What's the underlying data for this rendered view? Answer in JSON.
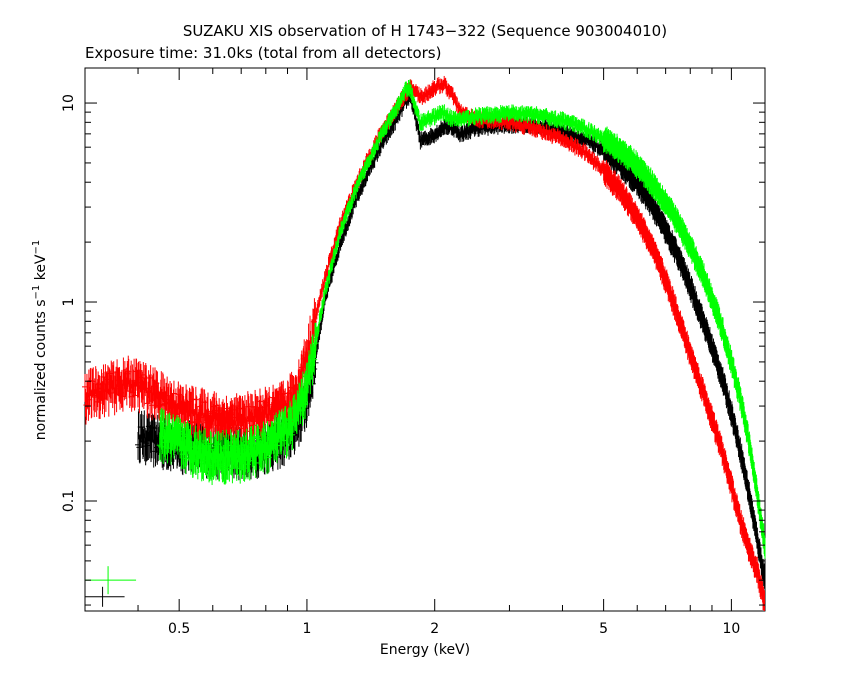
{
  "chart_data": {
    "type": "scatter",
    "title": "SUZAKU XIS observation of H 1743−322 (Sequence 903004010)",
    "subtitle": "Exposure time: 31.0ks (total from all detectors)",
    "xlabel": "Energy (keV)",
    "ylabel": {
      "prefix": "normalized counts s",
      "sup1": "−1",
      "middle": " keV",
      "sup2": "−1"
    },
    "x_scale": "log",
    "y_scale": "log",
    "xlim": [
      0.3,
      12
    ],
    "ylim": [
      0.028,
      15
    ],
    "x_ticks": [
      {
        "value": 0.5,
        "label": "0.5"
      },
      {
        "value": 1,
        "label": "1"
      },
      {
        "value": 2,
        "label": "2"
      },
      {
        "value": 5,
        "label": "5"
      },
      {
        "value": 10,
        "label": "10"
      }
    ],
    "y_ticks": [
      {
        "value": 0.1,
        "label": "0.1"
      },
      {
        "value": 1,
        "label": "1"
      },
      {
        "value": 10,
        "label": "10"
      }
    ],
    "grid": false,
    "series": [
      {
        "color": "#000000",
        "x": [
          0.4,
          0.42,
          0.45,
          0.5,
          0.55,
          0.6,
          0.65,
          0.7,
          0.75,
          0.8,
          0.85,
          0.9,
          0.95,
          1.0,
          1.05,
          1.1,
          1.2,
          1.3,
          1.4,
          1.5,
          1.6,
          1.7,
          1.75,
          1.8,
          1.85,
          1.9,
          2.0,
          2.1,
          2.2,
          2.3,
          2.5,
          2.8,
          3.0,
          3.5,
          4.0,
          4.5,
          5.0,
          5.5,
          6.0,
          6.5,
          7.0,
          7.5,
          8.0,
          8.5,
          9.0,
          9.5,
          10.0,
          10.5,
          11.0,
          11.5,
          12.0
        ],
        "y": [
          0.22,
          0.21,
          0.2,
          0.19,
          0.19,
          0.18,
          0.18,
          0.18,
          0.18,
          0.19,
          0.2,
          0.21,
          0.25,
          0.32,
          0.55,
          1.0,
          2.0,
          3.2,
          4.6,
          6.2,
          7.8,
          10.0,
          11.0,
          8.5,
          6.5,
          6.6,
          7.0,
          7.6,
          7.6,
          7.0,
          7.5,
          7.7,
          7.8,
          7.7,
          7.2,
          6.6,
          5.8,
          4.9,
          4.0,
          3.1,
          2.3,
          1.7,
          1.2,
          0.85,
          0.6,
          0.42,
          0.28,
          0.18,
          0.11,
          0.065,
          0.04
        ]
      },
      {
        "color": "#ff0000",
        "x": [
          0.3,
          0.32,
          0.35,
          0.38,
          0.4,
          0.42,
          0.45,
          0.5,
          0.55,
          0.6,
          0.65,
          0.7,
          0.75,
          0.8,
          0.85,
          0.9,
          0.95,
          1.0,
          1.05,
          1.1,
          1.2,
          1.3,
          1.4,
          1.5,
          1.6,
          1.7,
          1.75,
          1.8,
          1.85,
          1.9,
          2.0,
          2.1,
          2.2,
          2.3,
          2.5,
          2.8,
          3.0,
          3.5,
          4.0,
          4.5,
          5.0,
          5.5,
          6.0,
          6.5,
          7.0,
          7.5,
          8.0,
          8.5,
          9.0,
          9.5,
          10.0,
          10.5,
          11.0,
          11.5,
          12.0
        ],
        "y": [
          0.34,
          0.36,
          0.38,
          0.4,
          0.39,
          0.37,
          0.34,
          0.3,
          0.28,
          0.27,
          0.26,
          0.26,
          0.27,
          0.28,
          0.29,
          0.31,
          0.38,
          0.55,
          0.85,
          1.3,
          2.5,
          3.8,
          5.4,
          7.2,
          9.0,
          11.0,
          12.0,
          11.5,
          10.8,
          11.0,
          12.0,
          12.5,
          11.0,
          9.0,
          8.3,
          8.2,
          8.0,
          7.4,
          6.6,
          5.7,
          4.6,
          3.6,
          2.7,
          1.9,
          1.3,
          0.85,
          0.55,
          0.38,
          0.26,
          0.18,
          0.12,
          0.08,
          0.058,
          0.045,
          0.03
        ]
      },
      {
        "color": "#00ff00",
        "x": [
          0.45,
          0.5,
          0.55,
          0.6,
          0.65,
          0.7,
          0.75,
          0.8,
          0.85,
          0.9,
          0.95,
          1.0,
          1.05,
          1.1,
          1.2,
          1.3,
          1.4,
          1.5,
          1.6,
          1.7,
          1.75,
          1.8,
          1.85,
          1.9,
          2.0,
          2.1,
          2.2,
          2.3,
          2.5,
          2.8,
          3.0,
          3.5,
          4.0,
          4.5,
          5.0,
          5.5,
          6.0,
          6.5,
          7.0,
          7.5,
          8.0,
          8.5,
          9.0,
          9.5,
          10.0,
          10.5,
          11.0,
          11.5,
          12.0
        ],
        "y": [
          0.22,
          0.2,
          0.18,
          0.17,
          0.17,
          0.17,
          0.18,
          0.19,
          0.21,
          0.23,
          0.28,
          0.38,
          0.65,
          1.1,
          2.3,
          3.6,
          5.2,
          7.0,
          8.8,
          11.5,
          12.0,
          9.5,
          8.0,
          8.2,
          8.6,
          9.0,
          8.3,
          8.3,
          8.6,
          8.8,
          8.9,
          8.7,
          8.2,
          7.5,
          6.7,
          5.8,
          4.9,
          4.0,
          3.2,
          2.5,
          1.9,
          1.45,
          1.05,
          0.75,
          0.5,
          0.33,
          0.2,
          0.11,
          0.06
        ]
      }
    ],
    "legend_markers": [
      {
        "color": "#00ff00",
        "x": 0.34,
        "y": 0.04
      },
      {
        "color": "#000000",
        "x": 0.33,
        "y": 0.033
      }
    ]
  }
}
